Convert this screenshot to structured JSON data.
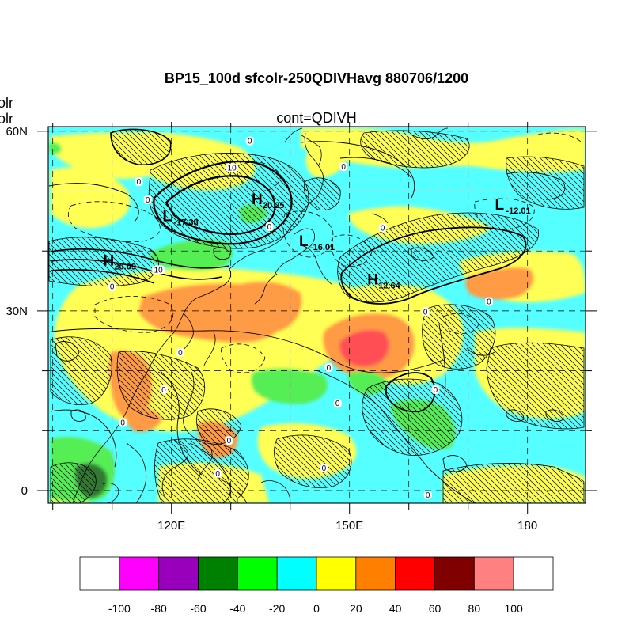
{
  "figure": {
    "title": "BP15_100d sfcolr-250QDIVHavg  880706/1200",
    "left_label_1": "olr",
    "left_label_2": "olr",
    "center_label": "cont=QDIVH"
  },
  "chart_data": {
    "type": "heatmap",
    "title": "BP15_100d sfcolr-250QDIVHavg  880706/1200",
    "subtitle": "cont=QDIVH",
    "x_ticks": [
      "120E",
      "150E",
      "180"
    ],
    "y_ticks": [
      "60N",
      "30N",
      "0"
    ],
    "lon_range": [
      99,
      189
    ],
    "lat_range": [
      -2,
      61
    ],
    "colorbar": {
      "ticks": [
        "-100",
        "-80",
        "-60",
        "-40",
        "-20",
        "0",
        "20",
        "40",
        "60",
        "80",
        "100"
      ],
      "colors": [
        "#ffffff",
        "#ff00ff",
        "#9900bb",
        "#008000",
        "#00ff00",
        "#00ffff",
        "#ffff00",
        "#ff8000",
        "#ff0000",
        "#800000",
        "#ff8080",
        "#ffffff"
      ]
    },
    "fill_colors": {
      "cyan": "#55ffff",
      "yellow": "#ffff55",
      "orange": "#ff9a44",
      "red": "#ff5055",
      "green": "#55ee55",
      "darkgreen": "#337a33"
    },
    "extrema": [
      {
        "type": "H",
        "value": "20.25",
        "lon": 133.5,
        "lat": 47.8
      },
      {
        "type": "L",
        "value": "-17.38",
        "lon": 118.5,
        "lat": 45.0
      },
      {
        "type": "L",
        "value": "-16.01",
        "lon": 141.5,
        "lat": 40.8
      },
      {
        "type": "L",
        "value": "-12.01",
        "lon": 174.5,
        "lat": 46.9
      },
      {
        "type": "H",
        "value": "20.09",
        "lon": 108.5,
        "lat": 37.6
      },
      {
        "type": "H",
        "value": "12.64",
        "lon": 153.0,
        "lat": 34.4
      }
    ],
    "contour_labels": [
      {
        "text": "0",
        "lon": 155.6,
        "lat": 43.8
      },
      {
        "text": "0",
        "lon": 149.0,
        "lat": 54.0
      },
      {
        "text": "0",
        "lon": 133.2,
        "lat": 58.3
      },
      {
        "text": "0",
        "lon": 114.5,
        "lat": 51.5
      },
      {
        "text": "0",
        "lon": 116.0,
        "lat": 48.5
      },
      {
        "text": "0",
        "lon": 136.5,
        "lat": 44.0
      },
      {
        "text": "0",
        "lon": 162.8,
        "lat": 29.8
      },
      {
        "text": "0",
        "lon": 173.5,
        "lat": 31.5
      },
      {
        "text": "0",
        "lon": 110.0,
        "lat": 34.0
      },
      {
        "text": "0",
        "lon": 121.5,
        "lat": 23.0
      },
      {
        "text": "0",
        "lon": 146.5,
        "lat": 20.5
      },
      {
        "text": "0",
        "lon": 148.0,
        "lat": 14.5
      },
      {
        "text": "0",
        "lon": 164.5,
        "lat": 16.8
      },
      {
        "text": "0",
        "lon": 118.7,
        "lat": 16.8
      },
      {
        "text": "0",
        "lon": 111.8,
        "lat": 11.3
      },
      {
        "text": "0",
        "lon": 129.7,
        "lat": 8.3
      },
      {
        "text": "0",
        "lon": 127.8,
        "lat": 2.8
      },
      {
        "text": "0",
        "lon": 145.7,
        "lat": 3.7
      },
      {
        "text": "0",
        "lon": 163.2,
        "lat": -0.8
      },
      {
        "text": "10",
        "lon": 130.2,
        "lat": 53.8
      },
      {
        "text": "10",
        "lon": 117.8,
        "lat": 36.8
      }
    ]
  }
}
